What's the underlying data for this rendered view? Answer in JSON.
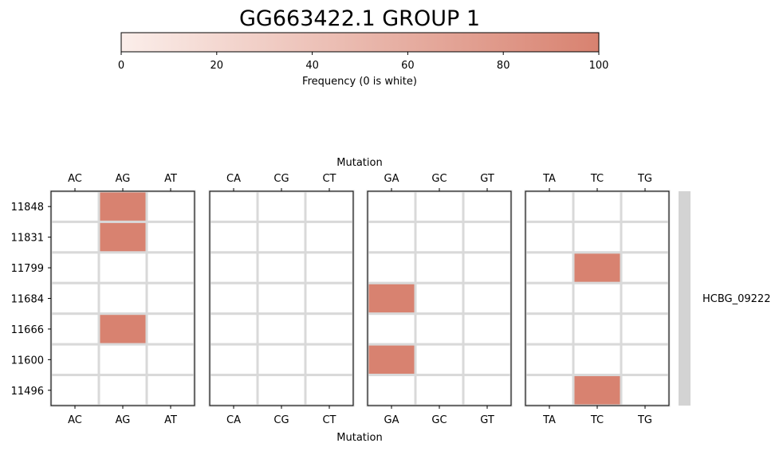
{
  "chart_data": {
    "type": "heatmap",
    "title": "GG663422.1 GROUP 1",
    "colorbar": {
      "label": "Frequency (0 is white)",
      "ticks": [
        0,
        20,
        40,
        60,
        80,
        100
      ],
      "range": [
        0,
        100
      ],
      "color_low": "#fbeeea",
      "color_high": "#d88270"
    },
    "xlabel": "Mutation",
    "ylabel": "",
    "panels": [
      {
        "columns": [
          "AC",
          "AG",
          "AT"
        ]
      },
      {
        "columns": [
          "CA",
          "CG",
          "CT"
        ]
      },
      {
        "columns": [
          "GA",
          "GC",
          "GT"
        ]
      },
      {
        "columns": [
          "TA",
          "TC",
          "TG"
        ]
      }
    ],
    "rows": [
      "11848",
      "11831",
      "11799",
      "11684",
      "11666",
      "11600",
      "11496"
    ],
    "group_label": "HCBG_09222",
    "group_bar_color": "#d3d3d3",
    "grid_color": "#d9d9d9",
    "cells": [
      {
        "row": "11848",
        "mutation": "AG",
        "value": 100
      },
      {
        "row": "11831",
        "mutation": "AG",
        "value": 100
      },
      {
        "row": "11799",
        "mutation": "TC",
        "value": 100
      },
      {
        "row": "11684",
        "mutation": "GA",
        "value": 100
      },
      {
        "row": "11666",
        "mutation": "AG",
        "value": 100
      },
      {
        "row": "11600",
        "mutation": "GA",
        "value": 100
      },
      {
        "row": "11496",
        "mutation": "TC",
        "value": 100
      }
    ]
  }
}
